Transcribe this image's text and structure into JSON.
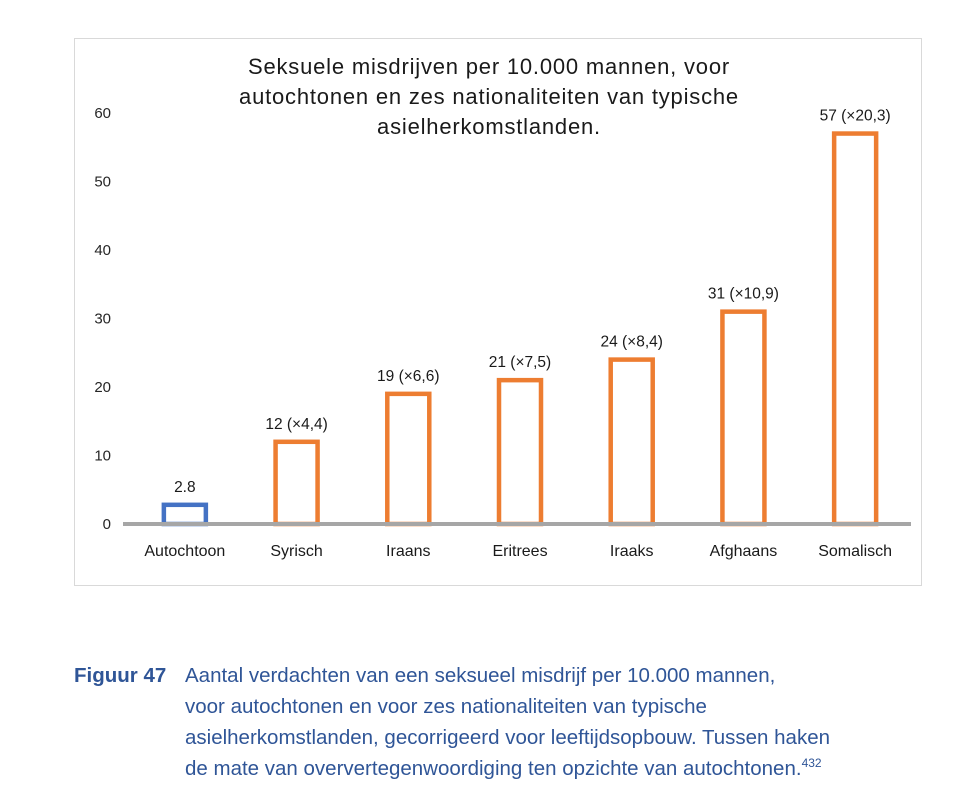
{
  "chart_data": {
    "type": "bar",
    "title_lines": [
      "Seksuele misdrijven per 10.000 mannen, voor",
      "autochtonen en zes nationaliteiten van typische",
      "asielherkomstlanden."
    ],
    "categories": [
      "Autochtoon",
      "Syrisch",
      "Iraans",
      "Eritrees",
      "Iraaks",
      "Afghaans",
      "Somalisch"
    ],
    "values": [
      2.8,
      12,
      19,
      21,
      24,
      31,
      57
    ],
    "data_labels": [
      "2.8",
      "12 (×4,4)",
      "19 (×6,6)",
      "21 (×7,5)",
      "24 (×8,4)",
      "31 (×10,9)",
      "57 (×20,3)"
    ],
    "bar_colors": [
      "#4472c4",
      "#ed7d31",
      "#ed7d31",
      "#ed7d31",
      "#ed7d31",
      "#ed7d31",
      "#ed7d31"
    ],
    "bar_fill": "#ffffff",
    "ylim": [
      0,
      60
    ],
    "yticks": [
      0,
      10,
      20,
      30,
      40,
      50,
      60
    ],
    "grid": false,
    "axis_color": "#a6a6a6"
  },
  "caption": {
    "label": "Figuur 47",
    "lines": [
      "Aantal verdachten van een seksueel misdrijf per 10.000 mannen,",
      "voor autochtonen en voor zes nationaliteiten van typische",
      "asielherkomstlanden, gecorrigeerd voor leeftijdsopbouw. Tussen haken",
      "de mate van oververtegenwoordiging ten opzichte van autochtonen."
    ],
    "footnote": "432",
    "color": "#2f5597"
  }
}
